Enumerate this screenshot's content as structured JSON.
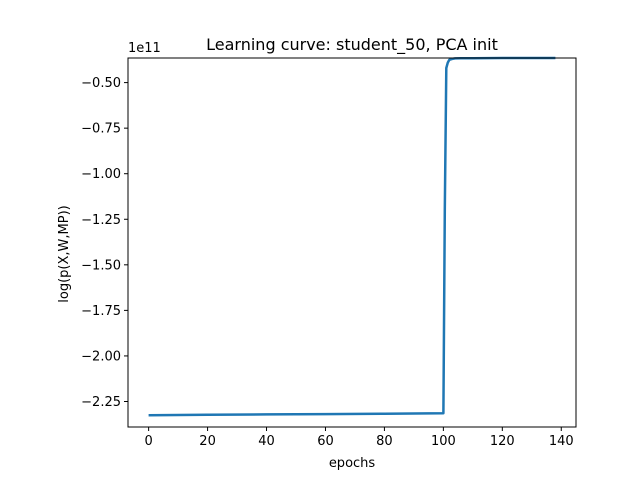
{
  "chart_data": {
    "type": "line",
    "title": "Learning curve: student_50, PCA init",
    "xlabel": "epochs",
    "ylabel": "log(p(X,W,MP))",
    "offset_text": "1e11",
    "xlim": [
      -7,
      145
    ],
    "ylim": [
      -2.39,
      -0.365
    ],
    "xticks": [
      0,
      20,
      40,
      60,
      80,
      100,
      120,
      140
    ],
    "xtick_labels": [
      "0",
      "20",
      "40",
      "60",
      "80",
      "100",
      "120",
      "140"
    ],
    "yticks": [
      -0.5,
      -0.75,
      -1.0,
      -1.25,
      -1.5,
      -1.75,
      -2.0,
      -2.25
    ],
    "ytick_labels": [
      "−0.50",
      "−0.75",
      "−1.00",
      "−1.25",
      "−1.50",
      "−1.75",
      "−2.00",
      "−2.25"
    ],
    "grid": false,
    "series": [
      {
        "color": "#1f77b4",
        "x": [
          0,
          20,
          40,
          60,
          80,
          100,
          100.5,
          101,
          101.5,
          102,
          103,
          104,
          106,
          110,
          120,
          130,
          138
        ],
        "y": [
          -2.325,
          -2.323,
          -2.321,
          -2.319,
          -2.317,
          -2.315,
          -1.2,
          -0.42,
          -0.39,
          -0.375,
          -0.37,
          -0.367,
          -0.366,
          -0.366,
          -0.365,
          -0.365,
          -0.365
        ]
      }
    ]
  }
}
